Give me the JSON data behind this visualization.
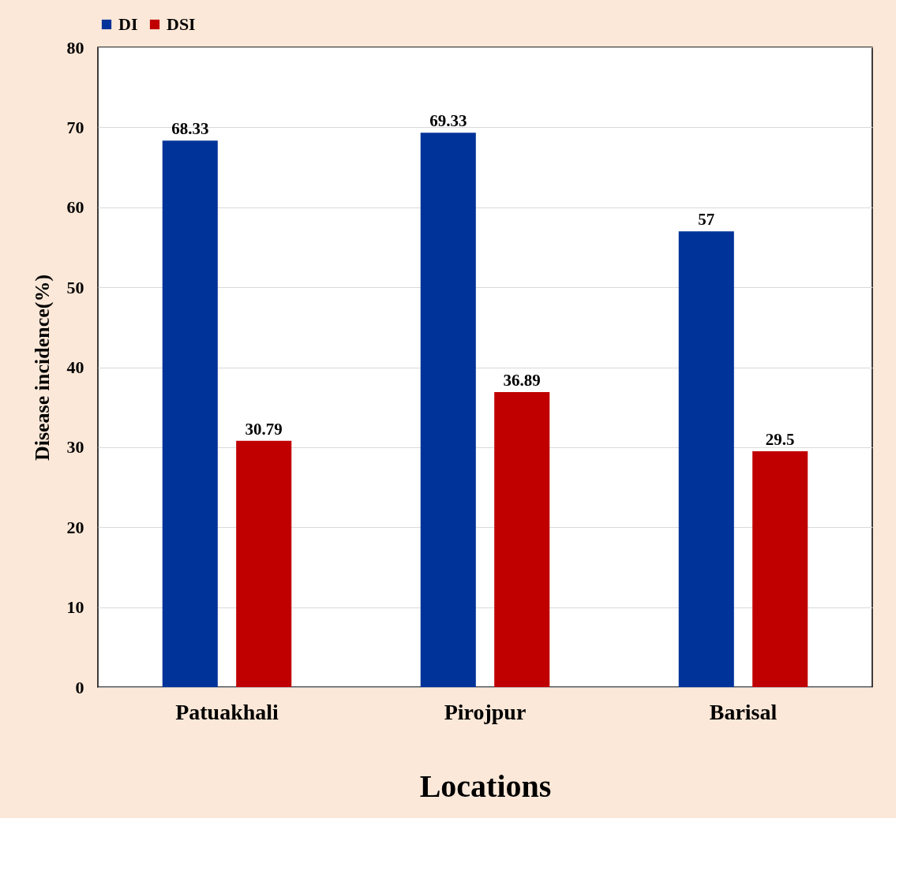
{
  "chart_data": {
    "type": "bar",
    "xlabel": "Locations",
    "ylabel": "Disease incidence(%)",
    "categories": [
      "Patuakhali",
      "Pirojpur",
      "Barisal"
    ],
    "series": [
      {
        "name": "DI",
        "color": "#003399",
        "values": [
          68.33,
          69.33,
          57
        ]
      },
      {
        "name": "DSI",
        "color": "#c00000",
        "values": [
          30.79,
          36.89,
          29.5
        ]
      }
    ],
    "ylim": [
      0,
      80
    ],
    "yticks": [
      0,
      10,
      20,
      30,
      40,
      50,
      60,
      70,
      80
    ],
    "grid": "y",
    "legend": "top",
    "data_labels": true
  }
}
